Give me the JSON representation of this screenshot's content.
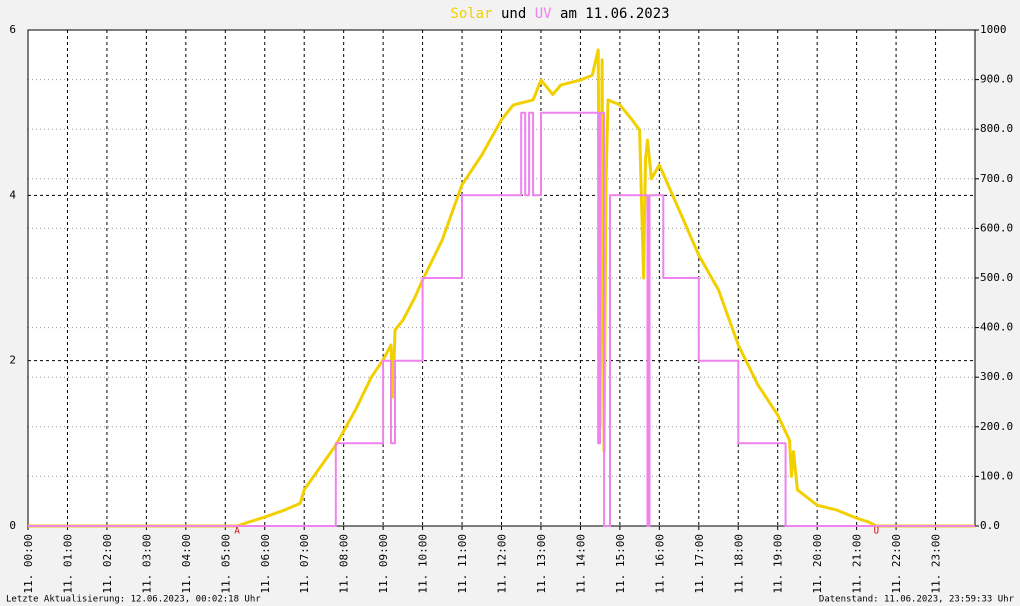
{
  "chart_data": {
    "type": "line",
    "title_joiner": "und",
    "title_suffix": "am 11.06.2023",
    "xlim": [
      0,
      24
    ],
    "xticks": [
      {
        "value": 0,
        "label": "11. 00:00"
      },
      {
        "value": 1,
        "label": "11. 01:00"
      },
      {
        "value": 2,
        "label": "11. 02:00"
      },
      {
        "value": 3,
        "label": "11. 03:00"
      },
      {
        "value": 4,
        "label": "11. 04:00"
      },
      {
        "value": 5,
        "label": "11. 05:00"
      },
      {
        "value": 6,
        "label": "11. 06:00"
      },
      {
        "value": 7,
        "label": "11. 07:00"
      },
      {
        "value": 8,
        "label": "11. 08:00"
      },
      {
        "value": 9,
        "label": "11. 09:00"
      },
      {
        "value": 10,
        "label": "11. 10:00"
      },
      {
        "value": 11,
        "label": "11. 11:00"
      },
      {
        "value": 12,
        "label": "11. 12:00"
      },
      {
        "value": 13,
        "label": "11. 13:00"
      },
      {
        "value": 14,
        "label": "11. 14:00"
      },
      {
        "value": 15,
        "label": "11. 15:00"
      },
      {
        "value": 16,
        "label": "11. 16:00"
      },
      {
        "value": 17,
        "label": "11. 17:00"
      },
      {
        "value": 18,
        "label": "11. 18:00"
      },
      {
        "value": 19,
        "label": "11. 19:00"
      },
      {
        "value": 20,
        "label": "11. 20:00"
      },
      {
        "value": 21,
        "label": "11. 21:00"
      },
      {
        "value": 22,
        "label": "11. 22:00"
      },
      {
        "value": 23,
        "label": "11. 23:00"
      }
    ],
    "ylim": [
      0,
      6
    ],
    "yticks": [
      0,
      2,
      4,
      6
    ],
    "y2lim": [
      0,
      1000
    ],
    "y2ticks": [
      {
        "value": 0,
        "label": "0.0"
      },
      {
        "value": 100,
        "label": "100.0"
      },
      {
        "value": 200,
        "label": "200.0"
      },
      {
        "value": 300,
        "label": "300.0"
      },
      {
        "value": 400,
        "label": "400.0"
      },
      {
        "value": 500,
        "label": "500.0"
      },
      {
        "value": 600,
        "label": "600.0"
      },
      {
        "value": 700,
        "label": "700.0"
      },
      {
        "value": 800,
        "label": "800.0"
      },
      {
        "value": 900,
        "label": "900.0"
      },
      1000
    ],
    "grid": true,
    "series": [
      {
        "name": "Solar",
        "color": "#f2d000",
        "axis": "y2",
        "x": [
          0,
          5.3,
          5.6,
          6.0,
          6.5,
          6.9,
          7.0,
          7.4,
          7.8,
          8.3,
          8.7,
          9.0,
          9.2,
          9.25,
          9.3,
          9.5,
          9.8,
          10.0,
          10.5,
          11.0,
          11.5,
          12.0,
          12.3,
          12.8,
          13.0,
          13.3,
          13.5,
          14.0,
          14.3,
          14.45,
          14.5,
          14.55,
          14.6,
          14.65,
          14.7,
          15.0,
          15.3,
          15.5,
          15.6,
          15.65,
          15.7,
          15.8,
          16.0,
          16.5,
          17.0,
          17.5,
          18.0,
          18.5,
          19.0,
          19.3,
          19.35,
          19.4,
          19.5,
          20.0,
          20.5,
          21.0,
          21.3,
          21.5,
          24
        ],
        "values": [
          0,
          0,
          8,
          18,
          32,
          46,
          73,
          118,
          163,
          234,
          300,
          335,
          365,
          260,
          395,
          415,
          460,
          496,
          577,
          688,
          748,
          819,
          849,
          859,
          899,
          870,
          889,
          899,
          909,
          960,
          200,
          940,
          150,
          700,
          859,
          849,
          820,
          798,
          500,
          740,
          778,
          700,
          728,
          637,
          546,
          476,
          365,
          284,
          224,
          173,
          100,
          150,
          73,
          42,
          32,
          16,
          8,
          0,
          0
        ]
      },
      {
        "name": "UV",
        "color": "#ee82ee",
        "x": [
          0,
          7.8,
          7.8,
          9.0,
          9.0,
          9.2,
          9.2,
          9.3,
          9.3,
          10.0,
          10.0,
          11.0,
          11.0,
          12.5,
          12.5,
          12.6,
          12.6,
          12.7,
          12.7,
          12.8,
          12.8,
          13.0,
          13.0,
          14.45,
          14.45,
          14.5,
          14.5,
          14.6,
          14.6,
          14.75,
          14.75,
          15.7,
          15.7,
          15.75,
          15.75,
          16.1,
          16.1,
          17.0,
          17.0,
          18.0,
          18.0,
          19.2,
          19.2,
          24
        ],
        "values": [
          0,
          0,
          1,
          1,
          2,
          2,
          1,
          1,
          2,
          2,
          3,
          3,
          4,
          4,
          5,
          5,
          4,
          4,
          5,
          5,
          4,
          4,
          5,
          5,
          1,
          1,
          5,
          5,
          0,
          0,
          4,
          4,
          0,
          0,
          4,
          4,
          3,
          3,
          2,
          2,
          1,
          1,
          0,
          0
        ]
      }
    ],
    "annotations": [
      {
        "text": "A",
        "x": 5.3
      },
      {
        "text": "U",
        "x": 21.5
      }
    ],
    "footer_left": "Letzte Aktualisierung: 12.06.2023, 00:02:18 Uhr",
    "footer_right": "Datenstand: 11.06.2023, 23:59:33 Uhr"
  }
}
